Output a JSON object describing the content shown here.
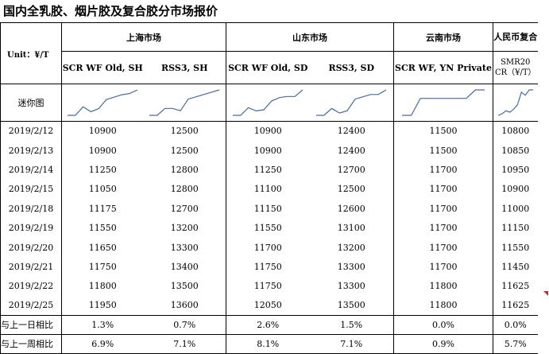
{
  "title": "国内全乳胶、烟片胶及复合胶分市场报价",
  "unit_label": "Unit：¥/T",
  "regions": {
    "shanghai": "上海市场",
    "shandong": "山东市场",
    "yunnan": "云南市场",
    "rmb": "人民币复合"
  },
  "columns": {
    "c1": "SCR WF Old, SH",
    "c2": "RSS3, SH",
    "c3": "SCR WF Old, SD",
    "c4": "RSS3, SD",
    "c5": "SCR WF, YN Private",
    "c6": "SMR20 CR（¥/T）"
  },
  "spark_label": "迷你图",
  "rows": [
    {
      "date": "2019/2/12",
      "v": [
        "10900",
        "12500",
        "10900",
        "12400",
        "11500",
        "10800"
      ]
    },
    {
      "date": "2019/2/13",
      "v": [
        "10900",
        "12500",
        "10900",
        "12400",
        "11500",
        "10850"
      ]
    },
    {
      "date": "2019/2/14",
      "v": [
        "11250",
        "12800",
        "11250",
        "12700",
        "11700",
        "10950"
      ]
    },
    {
      "date": "2019/2/15",
      "v": [
        "11050",
        "12800",
        "11100",
        "12500",
        "11700",
        "10900"
      ]
    },
    {
      "date": "2019/2/18",
      "v": [
        "11175",
        "12700",
        "11150",
        "12600",
        "11700",
        "11000"
      ]
    },
    {
      "date": "2019/2/19",
      "v": [
        "11550",
        "13200",
        "11550",
        "13100",
        "11700",
        "11150"
      ]
    },
    {
      "date": "2019/2/20",
      "v": [
        "11650",
        "13300",
        "11700",
        "13200",
        "11700",
        "11550"
      ]
    },
    {
      "date": "2019/2/21",
      "v": [
        "11750",
        "13400",
        "11750",
        "13300",
        "11700",
        "11450"
      ]
    },
    {
      "date": "2019/2/22",
      "v": [
        "11800",
        "13500",
        "11750",
        "13300",
        "11800",
        "11625"
      ]
    },
    {
      "date": "2019/2/25",
      "v": [
        "11950",
        "13600",
        "12050",
        "13500",
        "11800",
        "11625"
      ]
    }
  ],
  "summary": [
    {
      "label": "与上一日相比",
      "v": [
        "1.3%",
        "0.7%",
        "2.6%",
        "1.5%",
        "0.0%",
        "0.0%"
      ]
    },
    {
      "label": "与上一周相比",
      "v": [
        "6.9%",
        "7.1%",
        "8.1%",
        "7.1%",
        "0.9%",
        "5.7%"
      ]
    }
  ],
  "spark_color": "#4a6a9a"
}
